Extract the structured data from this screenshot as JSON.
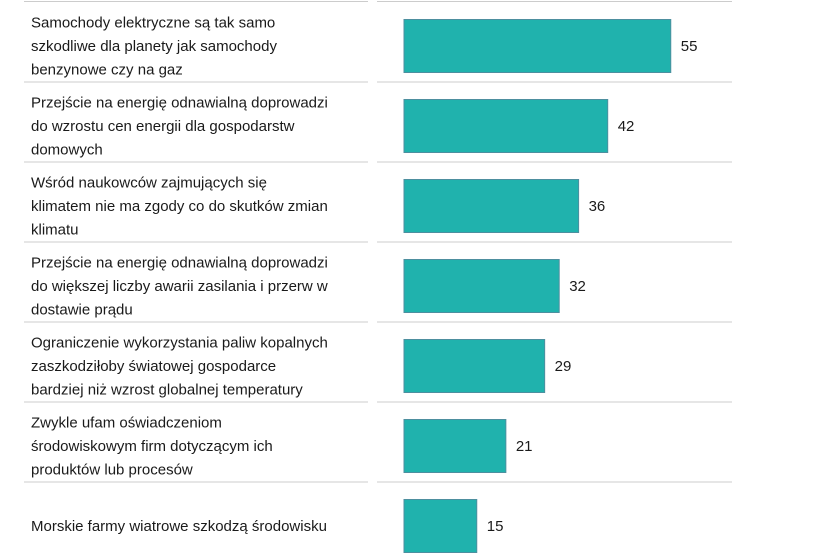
{
  "chart_data": {
    "type": "bar",
    "orientation": "horizontal",
    "categories": [
      [
        "Samochody elektryczne są tak samo",
        "szkodliwe dla planety jak samochody",
        "benzynowe czy na gaz"
      ],
      [
        "Przejście na energię odnawialną doprowadzi",
        "do wzrostu cen energii dla gospodarstw",
        "domowych"
      ],
      [
        "Wśród naukowców zajmujących się",
        "klimatem nie ma zgody co do skutków zmian",
        "klimatu"
      ],
      [
        "Przejście na energię odnawialną doprowadzi",
        "do większej liczby awarii zasilania i przerw w",
        "dostawie prądu"
      ],
      [
        "Ograniczenie wykorzystania paliw kopalnych",
        "zaszkodziłoby światowej gospodarce",
        "bardziej niż wzrost globalnej temperatury"
      ],
      [
        "Zwykle ufam oświadczeniom",
        "środowiskowym firm dotyczącym ich",
        "produktów lub procesów"
      ],
      [
        "Morskie farmy wiatrowe szkodzą środowisku"
      ]
    ],
    "values": [
      55,
      42,
      36,
      32,
      29,
      21,
      15
    ],
    "value_labels": [
      "55",
      "42",
      "36",
      "32",
      "29",
      "21",
      "15"
    ],
    "xlim": [
      0,
      55
    ],
    "grid": false,
    "colors": {
      "bar": "#20b2ad",
      "bar_edge": "#4d8f9f",
      "divider": "#cccccc",
      "text": "#1a1a1a"
    }
  }
}
